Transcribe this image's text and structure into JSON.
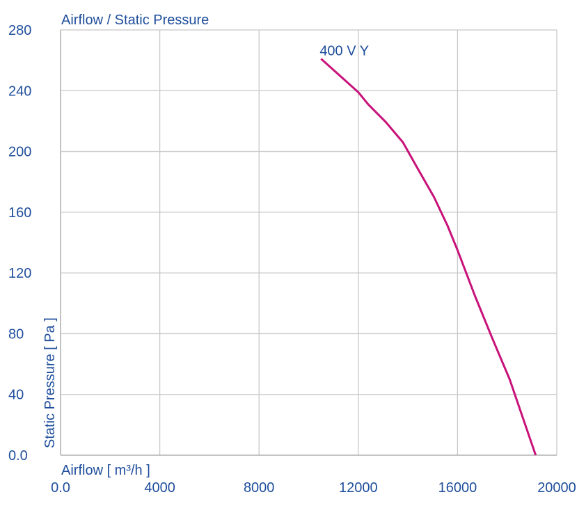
{
  "chart_data": {
    "type": "line",
    "title": "Airflow / Static Pressure",
    "xlabel": "Airflow [ m³/h ]",
    "ylabel": "Static Pressure [ Pa ]",
    "xlim": [
      0,
      20000
    ],
    "ylim": [
      0,
      280
    ],
    "xticks": [
      "0.0",
      "4000",
      "8000",
      "12000",
      "16000",
      "20000"
    ],
    "xtick_values": [
      0,
      4000,
      8000,
      12000,
      16000,
      20000
    ],
    "yticks": [
      "0.0",
      "40",
      "80",
      "120",
      "160",
      "200",
      "240",
      "280"
    ],
    "ytick_values": [
      0,
      40,
      80,
      120,
      160,
      200,
      240,
      280
    ],
    "grid": true,
    "series": [
      {
        "name": "400 V Y",
        "color": "#c8127a",
        "x": [
          10500,
          12000,
          12400,
          13100,
          13800,
          14350,
          15050,
          15600,
          16000,
          16700,
          17400,
          18100,
          19150
        ],
        "y": [
          261,
          239,
          231,
          219.5,
          206,
          190,
          170,
          151,
          135,
          105,
          77,
          50,
          0
        ]
      }
    ]
  },
  "colors": {
    "text": "#1f4e9c",
    "grid": "#c8c8c8",
    "axis": "#a0a0a0"
  }
}
